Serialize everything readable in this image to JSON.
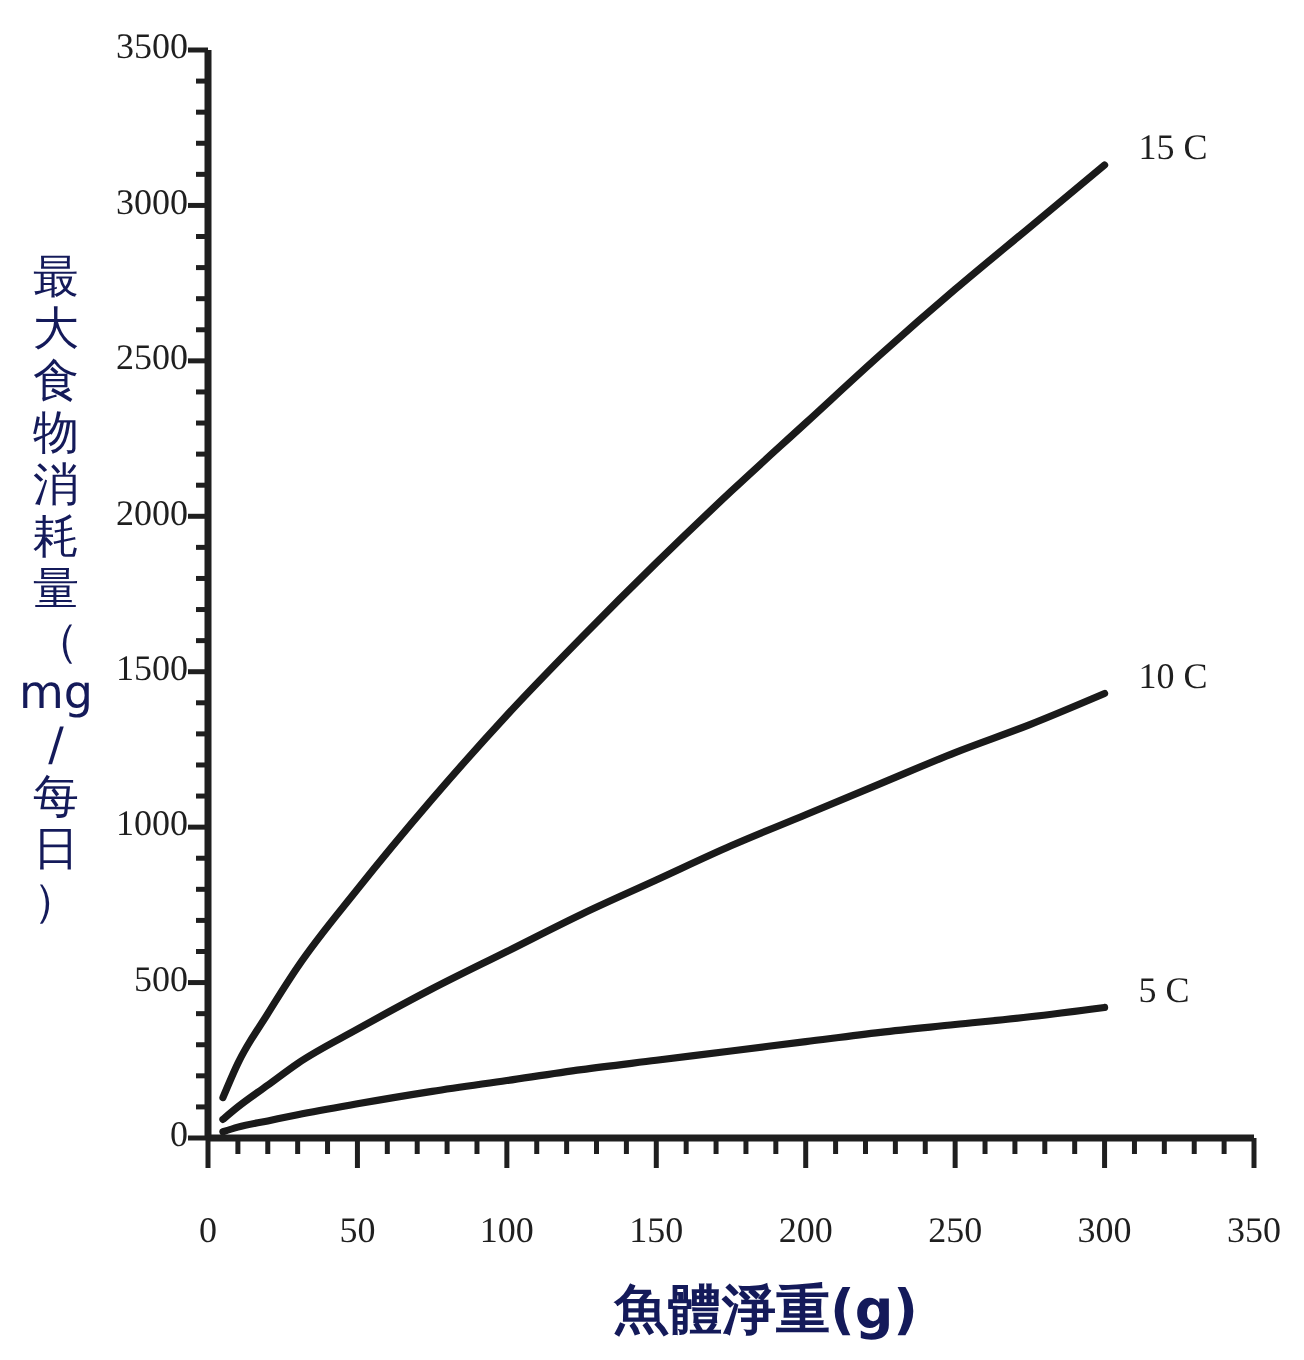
{
  "chart_data": {
    "type": "line",
    "xlabel": "魚體淨重(g)",
    "ylabel": "最大食物消耗量（mg/每日）",
    "x": [
      5,
      10,
      20,
      30,
      50,
      75,
      100,
      125,
      150,
      175,
      200,
      225,
      250,
      275,
      300
    ],
    "series": [
      {
        "name": "15 C",
        "color": "#1a1a1a",
        "values": [
          130,
          240,
          400,
          550,
          800,
          1090,
          1360,
          1610,
          1850,
          2080,
          2300,
          2520,
          2730,
          2930,
          3130
        ]
      },
      {
        "name": "10 C",
        "color": "#1a1a1a",
        "values": [
          60,
          100,
          170,
          240,
          350,
          480,
          600,
          720,
          830,
          940,
          1040,
          1140,
          1240,
          1330,
          1430
        ]
      },
      {
        "name": "5 C",
        "color": "#1a1a1a",
        "values": [
          20,
          35,
          55,
          75,
          110,
          150,
          185,
          220,
          250,
          280,
          310,
          340,
          365,
          390,
          420
        ]
      }
    ],
    "xlim": [
      0,
      350
    ],
    "ylim": [
      0,
      3500
    ],
    "xticks": [
      0,
      {
        "value": 10,
        "label": null
      },
      {
        "value": 20,
        "label": null
      },
      {
        "value": 30,
        "label": null
      },
      {
        "value": 40,
        "label": null
      },
      50,
      {
        "value": 60,
        "label": null
      },
      {
        "value": 70,
        "label": null
      },
      {
        "value": 80,
        "label": null
      },
      {
        "value": 90,
        "label": null
      },
      100,
      {
        "value": 110,
        "label": null
      },
      {
        "value": 120,
        "label": null
      },
      {
        "value": 130,
        "label": null
      },
      {
        "value": 140,
        "label": null
      },
      150,
      {
        "value": 160,
        "label": null
      },
      {
        "value": 170,
        "label": null
      },
      {
        "value": 180,
        "label": null
      },
      {
        "value": 190,
        "label": null
      },
      200,
      {
        "value": 210,
        "label": null
      },
      {
        "value": 220,
        "label": null
      },
      {
        "value": 230,
        "label": null
      },
      {
        "value": 240,
        "label": null
      },
      250,
      {
        "value": 260,
        "label": null
      },
      {
        "value": 270,
        "label": null
      },
      {
        "value": 280,
        "label": null
      },
      {
        "value": 290,
        "label": null
      },
      300,
      {
        "value": 310,
        "label": null
      },
      {
        "value": 320,
        "label": null
      },
      {
        "value": 330,
        "label": null
      },
      {
        "value": 340,
        "label": null
      },
      350
    ],
    "yticks": [
      0,
      {
        "value": 100,
        "label": null
      },
      {
        "value": 200,
        "label": null
      },
      {
        "value": 300,
        "label": null
      },
      {
        "value": 400,
        "label": null
      },
      500,
      {
        "value": 600,
        "label": null
      },
      {
        "value": 700,
        "label": null
      },
      {
        "value": 800,
        "label": null
      },
      {
        "value": 900,
        "label": null
      },
      1000,
      {
        "value": 1100,
        "label": null
      },
      {
        "value": 1200,
        "label": null
      },
      {
        "value": 1300,
        "label": null
      },
      {
        "value": 1400,
        "label": null
      },
      1500,
      {
        "value": 1600,
        "label": null
      },
      {
        "value": 1700,
        "label": null
      },
      {
        "value": 1800,
        "label": null
      },
      {
        "value": 1900,
        "label": null
      },
      2000,
      {
        "value": 2100,
        "label": null
      },
      {
        "value": 2200,
        "label": null
      },
      {
        "value": 2300,
        "label": null
      },
      {
        "value": 2400,
        "label": null
      },
      2500,
      {
        "value": 2600,
        "label": null
      },
      {
        "value": 2700,
        "label": null
      },
      {
        "value": 2800,
        "label": null
      },
      {
        "value": 2900,
        "label": null
      },
      3000,
      {
        "value": 3100,
        "label": null
      },
      {
        "value": 3200,
        "label": null
      },
      {
        "value": 3300,
        "label": null
      },
      {
        "value": 3400,
        "label": null
      },
      3500
    ]
  }
}
